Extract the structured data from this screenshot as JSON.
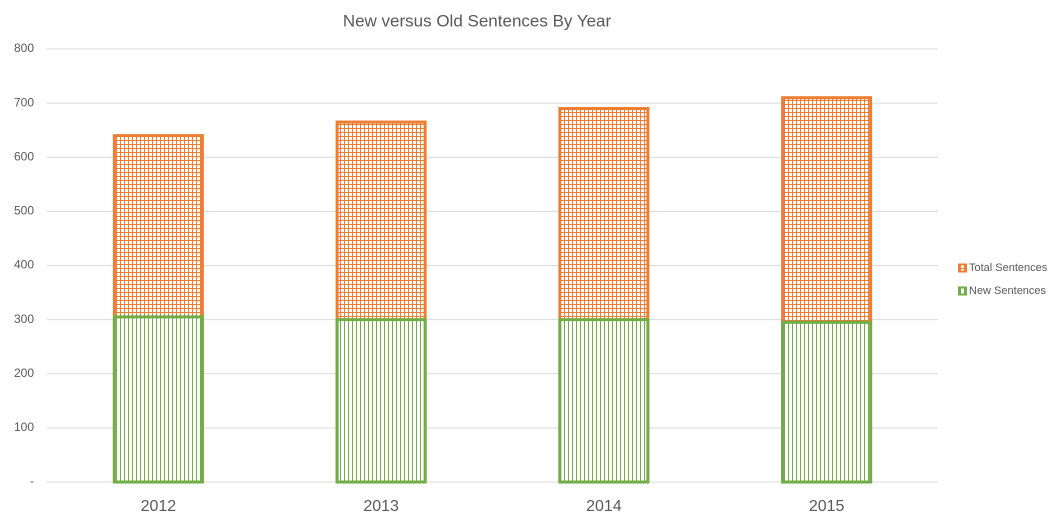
{
  "chart_data": {
    "type": "bar",
    "bar_mode": "overlay",
    "title": "New versus Old Sentences By Year",
    "categories": [
      "2012",
      "2013",
      "2014",
      "2015"
    ],
    "series": [
      {
        "name": "Total Sentences",
        "color": "#ed7d31",
        "values": [
          640,
          665,
          690,
          710
        ]
      },
      {
        "name": "New Sentences",
        "color": "#70ad47",
        "values": [
          305,
          300,
          300,
          295
        ]
      }
    ],
    "ylim": [
      0,
      800
    ],
    "yticks": [
      {
        "value": 0,
        "label": "-"
      },
      100,
      200,
      300,
      400,
      500,
      600,
      700,
      800
    ],
    "grid": true,
    "legend": "right"
  }
}
